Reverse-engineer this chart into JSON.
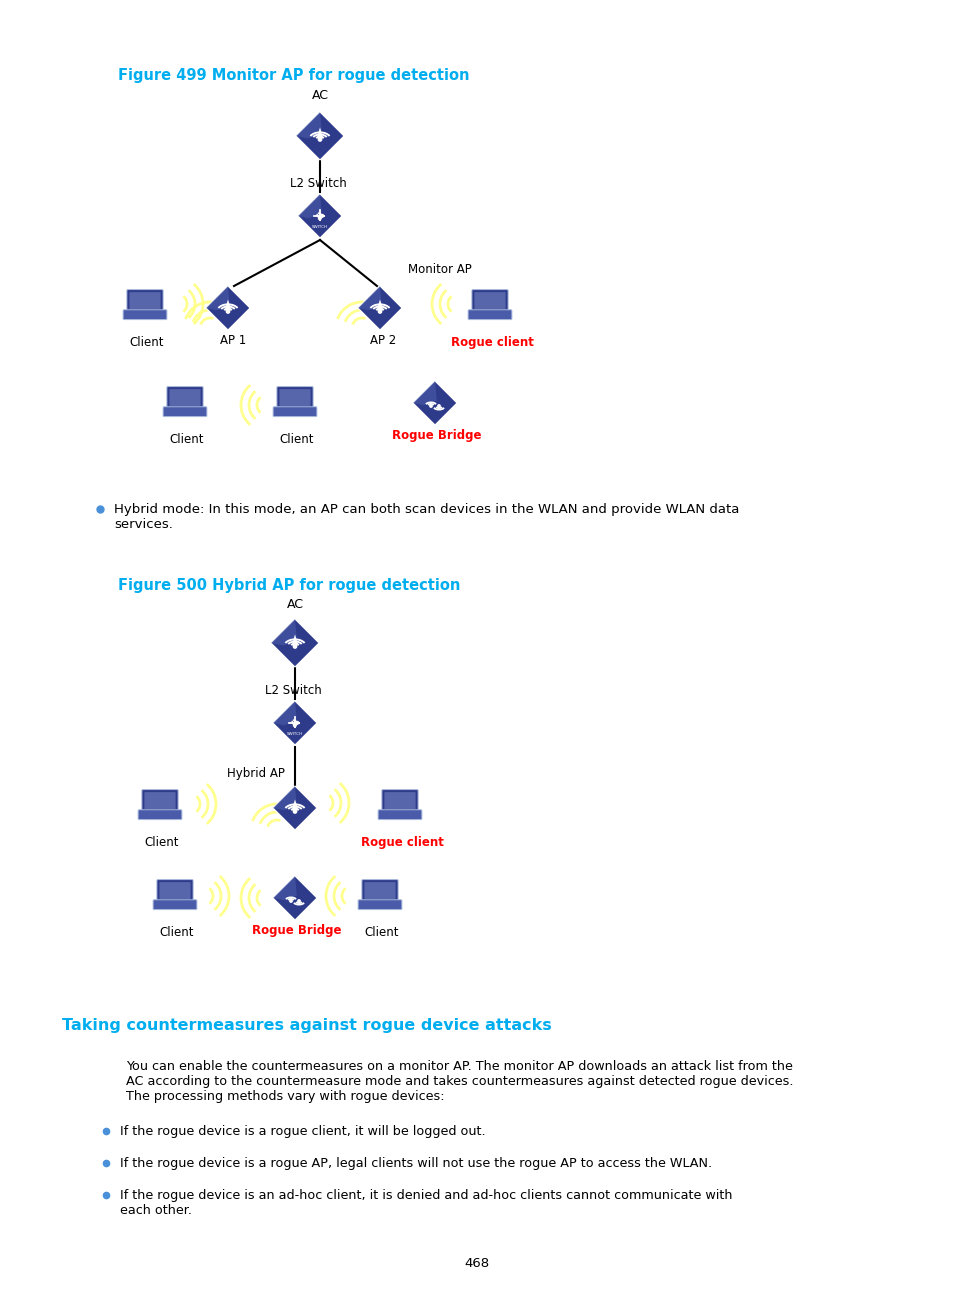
{
  "fig_title1": "Figure 499 Monitor AP for rogue detection",
  "fig_title2": "Figure 500 Hybrid AP for rogue detection",
  "section_title": "Taking countermeasures against rogue device attacks",
  "body_text": "You can enable the countermeasures on a monitor AP. The monitor AP downloads an attack list from the\nAC according to the countermeasure mode and takes countermeasures against detected rogue devices.\nThe processing methods vary with rogue devices:",
  "bullet1": "If the rogue device is a rogue client, it will be logged out.",
  "bullet2": "If the rogue device is a rogue AP, legal clients will not use the rogue AP to access the WLAN.",
  "bullet3": "If the rogue device is an ad-hoc client, it is denied and ad-hoc clients cannot communicate with\neach other.",
  "hybrid_mode_text": "Hybrid mode: In this mode, an AP can both scan devices in the WLAN and provide WLAN data\nservices.",
  "page_num": "468",
  "title_color": "#00AEEF",
  "section_color": "#00AEEF",
  "rogue_color": "#FF0000",
  "text_color": "#000000",
  "bg_color": "#FFFFFF",
  "node_dark": "#2E3B8A",
  "node_mid": "#4A5BAA",
  "node_light": "#8090CC",
  "line_color": "#000000",
  "wave_color": "#FFFF88",
  "bullet_color": "#4A90D9"
}
